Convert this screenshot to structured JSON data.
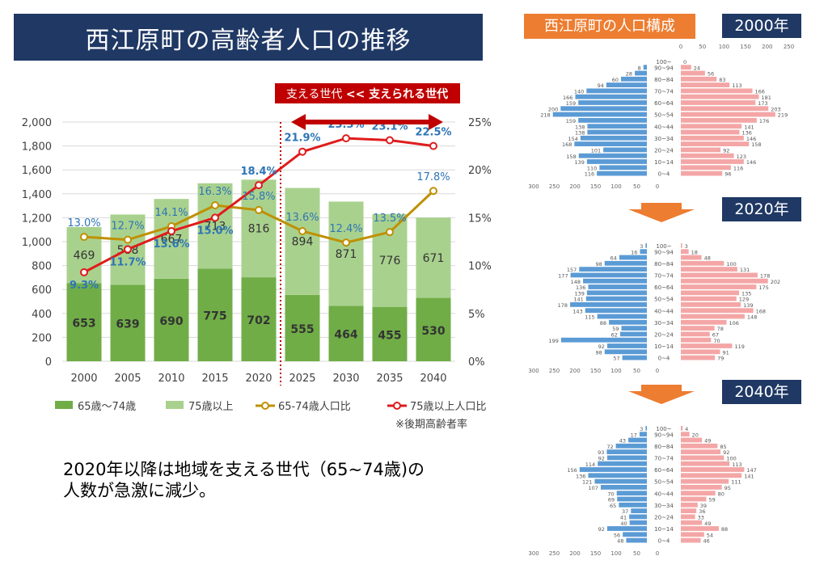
{
  "title": "西江原町の高齢者人口の推移",
  "note": {
    "line1": "2020年以降は地域を支える世代（65~74歳)の",
    "line2": "人数が急激に減少。"
  },
  "colors": {
    "dark_green": "#70ad47",
    "light_green": "#a9d18e",
    "gold": "#bf9000",
    "red": "#e01b1b",
    "navy": "#1f3864",
    "orange": "#ed7d31",
    "blue_bar": "#5b9bd5",
    "pink_bar": "#f4a6a6",
    "dark_red": "#c00000"
  },
  "chart_data": [
    {
      "type": "bar",
      "stacked": true,
      "secondary_axis": "line",
      "categories": [
        "2000",
        "2005",
        "2010",
        "2015",
        "2020",
        "2025",
        "2030",
        "2035",
        "2040"
      ],
      "series": [
        {
          "name": "65歳〜74歳",
          "kind": "bar",
          "axis": "left",
          "values": [
            653,
            639,
            690,
            775,
            702,
            555,
            464,
            455,
            530
          ]
        },
        {
          "name": "75歳以上",
          "kind": "bar",
          "axis": "left",
          "values": [
            469,
            588,
            667,
            713,
            816,
            894,
            871,
            776,
            671
          ]
        },
        {
          "name": "65-74歳人口比",
          "kind": "line",
          "axis": "right",
          "values": [
            13.0,
            12.7,
            14.1,
            16.3,
            15.8,
            13.6,
            12.4,
            13.5,
            17.8
          ],
          "labels": [
            "13.0%",
            "12.7%",
            "14.1%",
            "16.3%",
            "15.8%",
            "13.6%",
            "12.4%",
            "13.5%",
            "17.8%"
          ]
        },
        {
          "name": "75歳以上人口比",
          "kind": "line",
          "axis": "right",
          "values": [
            9.3,
            11.7,
            13.6,
            15.0,
            18.4,
            21.9,
            23.3,
            23.1,
            22.5
          ],
          "labels": [
            "9.3%",
            "11.7%",
            "13.6%",
            "15.0%",
            "18.4%",
            "21.9%",
            "23.3%",
            "23.1%",
            "22.5%"
          ]
        }
      ],
      "ylim": [
        0,
        2000
      ],
      "yticks": [
        "0",
        "200",
        "400",
        "600",
        "800",
        "1,000",
        "1,200",
        "1,400",
        "1,600",
        "1,800",
        "2,000"
      ],
      "y2lim": [
        0,
        25
      ],
      "y2ticks": [
        "0%",
        "5%",
        "10%",
        "15%",
        "20%",
        "25%"
      ],
      "grid": true,
      "legend": "bottom",
      "divider_after": "2020",
      "annotation": {
        "prefix": "支える世代 ",
        "arrows": "<<",
        "suffix": " 支えられる世代"
      },
      "footnote": "※後期高齢者率"
    },
    {
      "type": "bar",
      "orientation": "horizontal",
      "heading": "西江原町の人口構成",
      "year": "2000年",
      "age_groups": [
        "100~",
        "90~94",
        "85~89",
        "80~84",
        "75~79",
        "70~74",
        "65~69",
        "60~64",
        "55~59",
        "50~54",
        "45~49",
        "40~44",
        "35~39",
        "30~34",
        "25~29",
        "20~24",
        "15~19",
        "10~14",
        "5~9",
        "0~4"
      ],
      "age_labels": [
        "100~",
        "90~94",
        "",
        "80~84",
        "",
        "70~74",
        "",
        "60~64",
        "",
        "50~54",
        "",
        "40~44",
        "",
        "30~34",
        "",
        "20~24",
        "",
        "10~14",
        "",
        "0~4"
      ],
      "male": [
        0,
        8,
        28,
        60,
        94,
        140,
        166,
        159,
        200,
        218,
        159,
        138,
        138,
        154,
        168,
        101,
        158,
        139,
        110,
        116
      ],
      "female": [
        0,
        24,
        56,
        83,
        113,
        166,
        181,
        173,
        203,
        219,
        176,
        141,
        136,
        146,
        158,
        92,
        123,
        146,
        116,
        96
      ],
      "male_labels": [
        "",
        "8",
        "28",
        "60",
        "94",
        "140",
        "166",
        "159",
        "200",
        "218",
        "159",
        "138",
        "138",
        "154",
        "168",
        "101",
        "158",
        "139",
        "110",
        "116"
      ],
      "female_labels": [
        "0",
        "24",
        "56",
        "83",
        "113",
        "166",
        "181",
        "173",
        "203",
        "219",
        "176",
        "141",
        "136",
        "146",
        "158",
        "92",
        "123",
        "146",
        "116",
        "96"
      ],
      "xticks": [
        "0",
        "50",
        "100",
        "150",
        "200",
        "250",
        "300"
      ],
      "bottom_ticks": [
        "300",
        "250",
        "200",
        "150",
        "100",
        "50",
        "0"
      ]
    },
    {
      "type": "bar",
      "orientation": "horizontal",
      "year": "2020年",
      "age_groups": [
        "100~",
        "90~94",
        "85~89",
        "80~84",
        "75~79",
        "70~74",
        "65~69",
        "60~64",
        "55~59",
        "50~54",
        "45~49",
        "40~44",
        "35~39",
        "30~34",
        "25~29",
        "20~24",
        "15~19",
        "10~14",
        "5~9",
        "0~4"
      ],
      "age_labels": [
        "100~",
        "90~94",
        "",
        "80~84",
        "",
        "70~74",
        "",
        "60~64",
        "",
        "50~54",
        "",
        "40~44",
        "",
        "30~34",
        "",
        "20~24",
        "",
        "10~14",
        "",
        "0~4"
      ],
      "male": [
        3,
        16,
        64,
        98,
        157,
        177,
        148,
        136,
        139,
        141,
        178,
        143,
        115,
        88,
        59,
        62,
        199,
        92,
        98,
        57
      ],
      "female": [
        3,
        18,
        48,
        100,
        131,
        178,
        202,
        175,
        135,
        129,
        139,
        168,
        148,
        106,
        78,
        67,
        70,
        119,
        91,
        79
      ],
      "male_labels": [
        "3",
        "16",
        "64",
        "98",
        "157",
        "177",
        "148",
        "136",
        "139",
        "141",
        "178",
        "143",
        "115",
        "88",
        "59",
        "62",
        "199",
        "92",
        "98",
        "57"
      ],
      "female_labels": [
        "3",
        "18",
        "48",
        "100",
        "131",
        "178",
        "202",
        "175",
        "135",
        "129",
        "139",
        "168",
        "148",
        "106",
        "78",
        "67",
        "70",
        "119",
        "91",
        "79"
      ],
      "bottom_ticks": [
        "300",
        "250",
        "200",
        "150",
        "100",
        "50",
        "0"
      ]
    },
    {
      "type": "bar",
      "orientation": "horizontal",
      "year": "2040年",
      "age_groups": [
        "100~",
        "90~94",
        "85~89",
        "80~84",
        "75~79",
        "70~74",
        "65~69",
        "60~64",
        "55~59",
        "50~54",
        "45~49",
        "40~44",
        "35~39",
        "30~34",
        "25~29",
        "20~24",
        "15~19",
        "10~14",
        "5~9",
        "0~4"
      ],
      "age_labels": [
        "100~",
        "90~94",
        "",
        "80~84",
        "",
        "70~74",
        "",
        "60~64",
        "",
        "50~54",
        "",
        "40~44",
        "",
        "30~34",
        "",
        "20~24",
        "",
        "10~14",
        "",
        "0~4"
      ],
      "male": [
        3,
        17,
        43,
        72,
        93,
        92,
        114,
        156,
        136,
        121,
        107,
        70,
        69,
        65,
        37,
        41,
        40,
        92,
        56,
        48
      ],
      "female": [
        4,
        20,
        49,
        85,
        92,
        100,
        113,
        147,
        141,
        111,
        95,
        80,
        59,
        39,
        36,
        33,
        49,
        88,
        54,
        46
      ],
      "male_labels": [
        "3",
        "17",
        "43",
        "72",
        "93",
        "92",
        "114",
        "156",
        "136",
        "121",
        "107",
        "70",
        "69",
        "65",
        "37",
        "41",
        "40",
        "92",
        "56",
        "48"
      ],
      "female_labels": [
        "4",
        "20",
        "49",
        "85",
        "92",
        "100",
        "113",
        "147",
        "141",
        "111",
        "95",
        "80",
        "59",
        "39",
        "36",
        "33",
        "49",
        "88",
        "54",
        "46"
      ],
      "bottom_ticks": [
        "300",
        "250",
        "200",
        "150",
        "100",
        "50",
        "0"
      ]
    }
  ]
}
